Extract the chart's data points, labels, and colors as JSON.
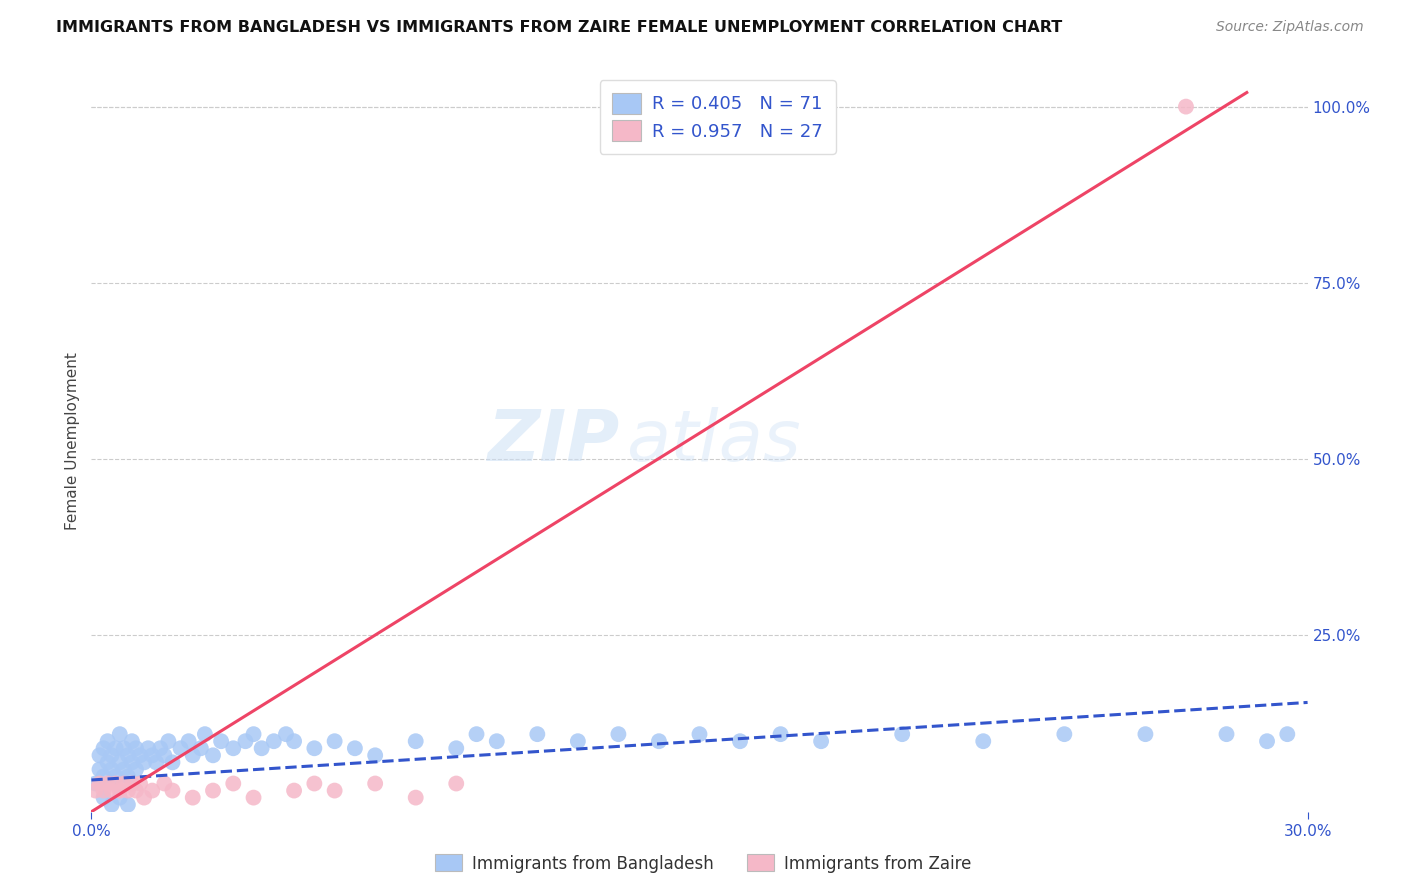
{
  "title": "IMMIGRANTS FROM BANGLADESH VS IMMIGRANTS FROM ZAIRE FEMALE UNEMPLOYMENT CORRELATION CHART",
  "source": "Source: ZipAtlas.com",
  "ylabel": "Female Unemployment",
  "xlim": [
    0.0,
    0.3
  ],
  "ylim": [
    0.0,
    1.05
  ],
  "xtick_labels": [
    "0.0%",
    "30.0%"
  ],
  "ytick_labels_right": [
    "25.0%",
    "50.0%",
    "75.0%",
    "100.0%"
  ],
  "ytick_positions_right": [
    0.25,
    0.5,
    0.75,
    1.0
  ],
  "grid_color": "#cccccc",
  "background_color": "#ffffff",
  "watermark_part1": "ZIP",
  "watermark_part2": "atlas",
  "bangladesh_scatter_color": "#a8c8f5",
  "zaire_scatter_color": "#f5b8c8",
  "bangladesh_line_color": "#3355cc",
  "zaire_line_color": "#ee4466",
  "bangladesh_R": 0.405,
  "bangladesh_N": 71,
  "zaire_R": 0.957,
  "zaire_N": 27,
  "bangladesh_x": [
    0.001,
    0.002,
    0.002,
    0.003,
    0.003,
    0.004,
    0.004,
    0.005,
    0.005,
    0.006,
    0.006,
    0.007,
    0.007,
    0.008,
    0.008,
    0.009,
    0.009,
    0.01,
    0.01,
    0.011,
    0.011,
    0.012,
    0.013,
    0.014,
    0.015,
    0.016,
    0.017,
    0.018,
    0.019,
    0.02,
    0.022,
    0.024,
    0.025,
    0.027,
    0.028,
    0.03,
    0.032,
    0.035,
    0.038,
    0.04,
    0.042,
    0.045,
    0.048,
    0.05,
    0.055,
    0.06,
    0.065,
    0.07,
    0.08,
    0.09,
    0.095,
    0.1,
    0.11,
    0.12,
    0.13,
    0.14,
    0.15,
    0.16,
    0.17,
    0.18,
    0.2,
    0.22,
    0.24,
    0.26,
    0.28,
    0.29,
    0.295,
    0.003,
    0.005,
    0.007,
    0.009
  ],
  "bangladesh_y": [
    0.04,
    0.06,
    0.08,
    0.05,
    0.09,
    0.07,
    0.1,
    0.06,
    0.08,
    0.05,
    0.09,
    0.07,
    0.11,
    0.06,
    0.09,
    0.05,
    0.08,
    0.07,
    0.1,
    0.06,
    0.09,
    0.08,
    0.07,
    0.09,
    0.08,
    0.07,
    0.09,
    0.08,
    0.1,
    0.07,
    0.09,
    0.1,
    0.08,
    0.09,
    0.11,
    0.08,
    0.1,
    0.09,
    0.1,
    0.11,
    0.09,
    0.1,
    0.11,
    0.1,
    0.09,
    0.1,
    0.09,
    0.08,
    0.1,
    0.09,
    0.11,
    0.1,
    0.11,
    0.1,
    0.11,
    0.1,
    0.11,
    0.1,
    0.11,
    0.1,
    0.11,
    0.1,
    0.11,
    0.11,
    0.11,
    0.1,
    0.11,
    0.02,
    0.01,
    0.02,
    0.01
  ],
  "zaire_x": [
    0.001,
    0.002,
    0.003,
    0.004,
    0.005,
    0.006,
    0.007,
    0.008,
    0.009,
    0.01,
    0.011,
    0.012,
    0.013,
    0.015,
    0.018,
    0.02,
    0.025,
    0.03,
    0.035,
    0.04,
    0.05,
    0.055,
    0.06,
    0.07,
    0.08,
    0.09,
    0.27
  ],
  "zaire_y": [
    0.03,
    0.04,
    0.03,
    0.04,
    0.03,
    0.04,
    0.03,
    0.04,
    0.03,
    0.04,
    0.03,
    0.04,
    0.02,
    0.03,
    0.04,
    0.03,
    0.02,
    0.03,
    0.04,
    0.02,
    0.03,
    0.04,
    0.03,
    0.04,
    0.02,
    0.04,
    1.0
  ],
  "bangladesh_trend_x": [
    0.0,
    0.3
  ],
  "bangladesh_trend_y": [
    0.045,
    0.155
  ],
  "zaire_trend_x": [
    0.0,
    0.285
  ],
  "zaire_trend_y": [
    0.0,
    1.02
  ],
  "legend_labels_bottom": [
    "Immigrants from Bangladesh",
    "Immigrants from Zaire"
  ]
}
